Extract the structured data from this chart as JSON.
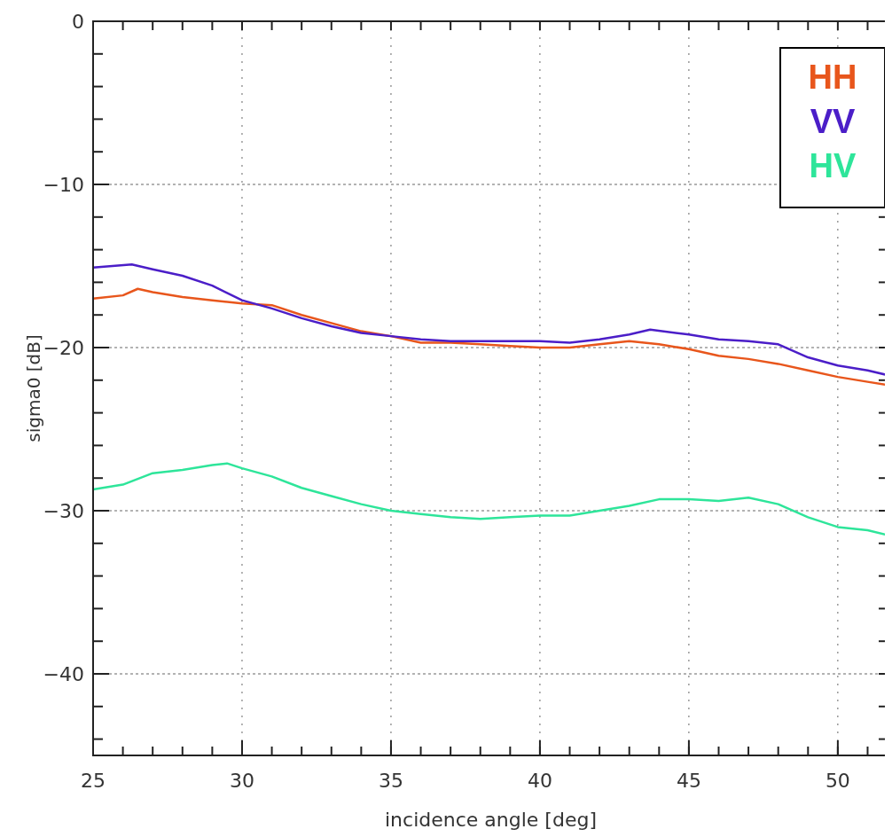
{
  "chart_data": {
    "type": "line",
    "xlabel": "incidence angle [deg]",
    "ylabel": "sigma0 [dB]",
    "xlim": [
      25,
      51.7
    ],
    "ylim": [
      -45,
      0
    ],
    "xticks": [
      25,
      30,
      35,
      40,
      45,
      50
    ],
    "yticks": [
      -40,
      -30,
      -20,
      -10,
      0
    ],
    "grid": true,
    "legend": "top right",
    "line_style": "solid",
    "marker": "none",
    "series": [
      {
        "name": "HH",
        "color": "#e8561c",
        "x": [
          25,
          26,
          26.5,
          27,
          28,
          29,
          30,
          31,
          32,
          33,
          34,
          35,
          36,
          37,
          38,
          39,
          40,
          41,
          42,
          43,
          44,
          45,
          46,
          47,
          48,
          49,
          50,
          51,
          51.7
        ],
        "values": [
          -17.0,
          -16.8,
          -16.4,
          -16.6,
          -16.9,
          -17.1,
          -17.3,
          -17.4,
          -18.0,
          -18.5,
          -19.0,
          -19.3,
          -19.7,
          -19.7,
          -19.8,
          -19.9,
          -20.0,
          -20.0,
          -19.8,
          -19.6,
          -19.8,
          -20.1,
          -20.5,
          -20.7,
          -21.0,
          -21.4,
          -21.8,
          -22.1,
          -22.3
        ]
      },
      {
        "name": "VV",
        "color": "#4b1ec8",
        "x": [
          25,
          26.3,
          27,
          28,
          29,
          30,
          31,
          32,
          33,
          34,
          35,
          36,
          37,
          38,
          39,
          40,
          41,
          42,
          43,
          43.7,
          45,
          46,
          47,
          48,
          49,
          50,
          51,
          51.7
        ],
        "values": [
          -15.1,
          -14.9,
          -15.2,
          -15.6,
          -16.2,
          -17.1,
          -17.6,
          -18.2,
          -18.7,
          -19.1,
          -19.3,
          -19.5,
          -19.6,
          -19.6,
          -19.6,
          -19.6,
          -19.7,
          -19.5,
          -19.2,
          -18.9,
          -19.2,
          -19.5,
          -19.6,
          -19.8,
          -20.6,
          -21.1,
          -21.4,
          -21.7
        ]
      },
      {
        "name": "HV",
        "color": "#2ee59a",
        "x": [
          25,
          26,
          27,
          28,
          29,
          29.5,
          30,
          31,
          32,
          33,
          34,
          35,
          36,
          37,
          38,
          39,
          40,
          41,
          42,
          43,
          44,
          45,
          46,
          47,
          48,
          49,
          50,
          51,
          51.7
        ],
        "values": [
          -28.7,
          -28.4,
          -27.7,
          -27.5,
          -27.2,
          -27.1,
          -27.4,
          -27.9,
          -28.6,
          -29.1,
          -29.6,
          -30.0,
          -30.2,
          -30.4,
          -30.5,
          -30.4,
          -30.3,
          -30.3,
          -30.0,
          -29.7,
          -29.3,
          -29.3,
          -29.4,
          -29.2,
          -29.6,
          -30.4,
          -31.0,
          -31.2,
          -31.5
        ]
      }
    ]
  }
}
